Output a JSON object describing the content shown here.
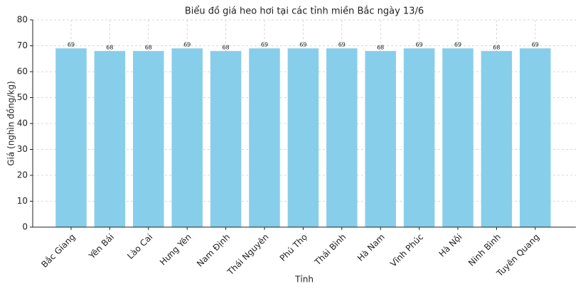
{
  "chart_data": {
    "type": "bar",
    "title": "Biểu đồ giá heo hơi tại các tỉnh miền Bắc ngày 13/6",
    "x_label": "Tỉnh",
    "y_label": "Giá (nghìn đồng/kg)",
    "categories": [
      "Bắc Giang",
      "Yên Bái",
      "Lào Cai",
      "Hưng Yên",
      "Nam Định",
      "Thái Nguyên",
      "Phú Thọ",
      "Thái Bình",
      "Hà Nam",
      "Vĩnh Phúc",
      "Hà Nội",
      "Ninh Bình",
      "Tuyên Quang"
    ],
    "values": [
      69,
      68,
      68,
      69,
      68,
      69,
      69,
      69,
      68,
      69,
      69,
      68,
      69
    ],
    "color": "#87ceeb",
    "ylim": [
      0,
      80
    ],
    "yticks": [
      0,
      10,
      20,
      30,
      40,
      50,
      60,
      70,
      80
    ],
    "grid": true
  }
}
